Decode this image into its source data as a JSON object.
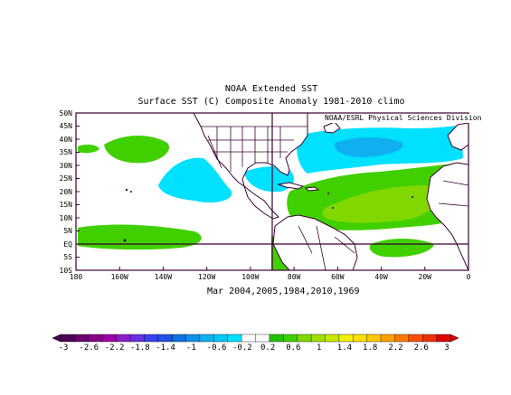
{
  "title": "NOAA Extended SST",
  "subtitle": "Surface SST (C) Composite Anomaly 1981-2010 climo",
  "credit": "NOAA/ESRL Physical Sciences Division",
  "composite_label": "Mar 2004,2005,1984,2010,1969",
  "lat_ticks": [
    "50N",
    "45N",
    "40N",
    "35N",
    "30N",
    "25N",
    "20N",
    "15N",
    "10N",
    "5N",
    "EQ",
    "5S",
    "10S"
  ],
  "lon_ticks": [
    "180",
    "160W",
    "140W",
    "120W",
    "100W",
    "80W",
    "60W",
    "40W",
    "20W",
    "0"
  ],
  "colorbar": {
    "labels": [
      "-3",
      "-2.6",
      "-2.2",
      "-1.8",
      "-1.4",
      "-1",
      "-0.6",
      "-0.2",
      "0.2",
      "0.6",
      "1",
      "1.4",
      "1.8",
      "2.2",
      "2.6",
      "3"
    ],
    "colors": [
      "#4b0055",
      "#6a006e",
      "#86008a",
      "#9d00a8",
      "#8a1fc8",
      "#6a2fe0",
      "#3a3ff0",
      "#2050e8",
      "#1070e0",
      "#1090e8",
      "#10b0f0",
      "#00c8f8",
      "#00e0ff",
      "#ffffff",
      "#ffffff",
      "#20c000",
      "#40d000",
      "#80d800",
      "#a0e000",
      "#c8e800",
      "#f0f000",
      "#ffe000",
      "#ffc800",
      "#ffa000",
      "#ff7800",
      "#ff5000",
      "#f03000",
      "#e00000"
    ]
  },
  "map": {
    "extent": {
      "lon": [
        -180,
        0
      ],
      "lat": [
        -10,
        50
      ]
    },
    "anomaly_colors": {
      "light_green": "#40d000",
      "yellow_green": "#80d800",
      "cyan": "#00e0ff",
      "light_blue": "#10b0f0"
    }
  }
}
